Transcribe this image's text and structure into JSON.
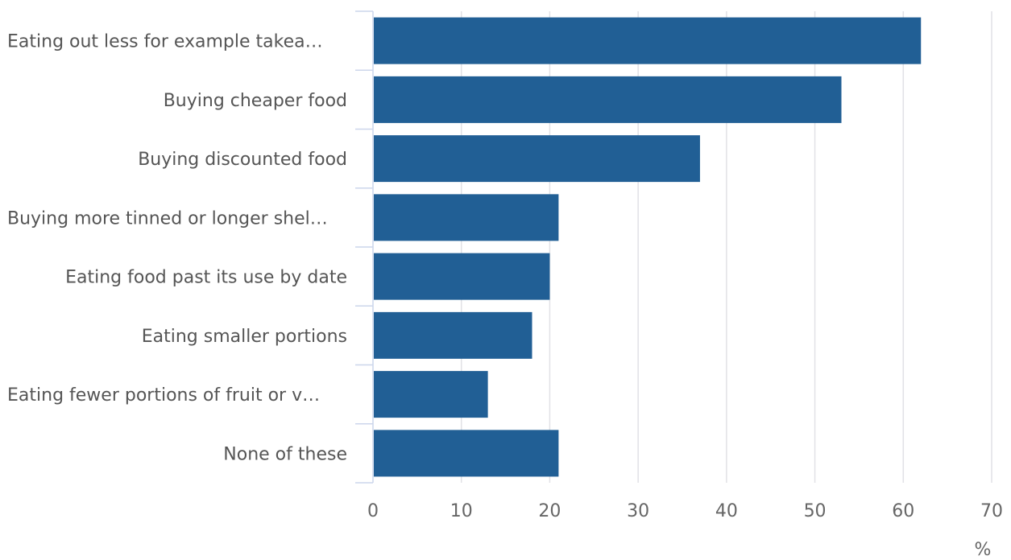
{
  "chart_data": {
    "type": "bar",
    "orientation": "horizontal",
    "categories": [
      "Eating out less for example takea…",
      "Buying cheaper food",
      "Buying discounted food",
      "Buying more tinned or longer shel…",
      "Eating food past its use by date",
      "Eating smaller portions",
      "Eating fewer portions of fruit or v…",
      "None of these"
    ],
    "values": [
      62,
      53,
      37,
      21,
      20,
      18,
      13,
      21
    ],
    "title": "",
    "xlabel": "%",
    "ylabel": "",
    "xlim": [
      0,
      70
    ],
    "x_ticks": [
      "0",
      "10",
      "20",
      "30",
      "40",
      "50",
      "60",
      "70"
    ],
    "grid": "vertical",
    "legend": "none",
    "colors": {
      "bar": "#215f95",
      "grid": "#e1e1e6",
      "axis": "#ccd6eb",
      "label_text": "#555555",
      "tick_text": "#666666"
    }
  }
}
